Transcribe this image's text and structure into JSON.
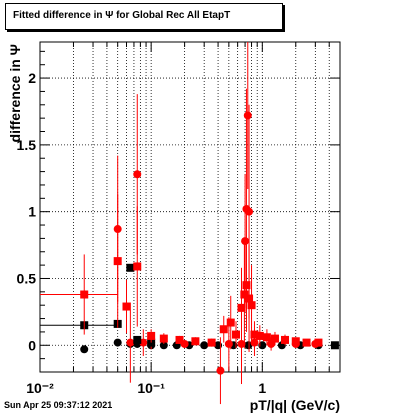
{
  "title": "Fitted difference in  Ψ  for Global Rec All EtapT",
  "footer": "Sun Apr 25 09:37:12 2021",
  "chart_data": {
    "type": "scatter",
    "title": "Fitted difference in  Ψ  for Global Rec All EtapT",
    "xlabel": "pT/|q| (GeV/c)",
    "ylabel": "difference in  Ψ",
    "xscale": "log",
    "xlim": [
      0.01,
      5.0
    ],
    "ylim": [
      -0.2,
      2.27
    ],
    "grid": true,
    "x_ticks": [
      {
        "label": "10⁻²",
        "value": 0.01
      },
      {
        "label": "10⁻¹",
        "value": 0.1
      },
      {
        "label": "1",
        "value": 1
      }
    ],
    "y_ticks": [
      {
        "label": "0",
        "value": 0
      },
      {
        "label": "0.5",
        "value": 0.5
      },
      {
        "label": "1",
        "value": 1
      },
      {
        "label": "1.5",
        "value": 1.5
      },
      {
        "label": "2",
        "value": 2
      }
    ],
    "series": [
      {
        "marker": "circle",
        "color": "#000000",
        "points": [
          {
            "x": 0.025,
            "y": -0.03,
            "elo": 0.0,
            "ehi": 0.0
          },
          {
            "x": 0.05,
            "y": 0.02,
            "elo": 0.0,
            "ehi": 0.0
          },
          {
            "x": 0.065,
            "y": 0.01,
            "elo": 0.0,
            "ehi": 0.0
          },
          {
            "x": 0.075,
            "y": 0.01,
            "elo": 0.0,
            "ehi": 0.0
          },
          {
            "x": 0.1,
            "y": 0.0,
            "elo": 0.0,
            "ehi": 0.0
          },
          {
            "x": 0.13,
            "y": 0.0,
            "elo": 0.0,
            "ehi": 0.0
          },
          {
            "x": 0.17,
            "y": 0.0,
            "elo": 0.0,
            "ehi": 0.0
          },
          {
            "x": 0.22,
            "y": 0.0,
            "elo": 0.0,
            "ehi": 0.0
          },
          {
            "x": 0.3,
            "y": 0.0,
            "elo": 0.0,
            "ehi": 0.0
          },
          {
            "x": 0.4,
            "y": 0.0,
            "elo": 0.0,
            "ehi": 0.0
          },
          {
            "x": 0.55,
            "y": 0.0,
            "elo": 0.0,
            "ehi": 0.0
          },
          {
            "x": 0.75,
            "y": 0.0,
            "elo": 0.0,
            "ehi": 0.0
          },
          {
            "x": 1.0,
            "y": 0.0,
            "elo": 0.0,
            "ehi": 0.0
          },
          {
            "x": 1.5,
            "y": 0.0,
            "elo": 0.0,
            "ehi": 0.0
          },
          {
            "x": 2.2,
            "y": 0.0,
            "elo": 0.0,
            "ehi": 0.0
          },
          {
            "x": 3.2,
            "y": 0.0,
            "elo": 0.0,
            "ehi": 0.0
          }
        ]
      },
      {
        "marker": "circle",
        "color": "#ff0000",
        "points": [
          {
            "x": 0.05,
            "y": 0.87,
            "elo": 0.55,
            "ehi": 0.55
          },
          {
            "x": 0.065,
            "y": 0.02,
            "elo": 0.3,
            "ehi": 0.3
          },
          {
            "x": 0.075,
            "y": 1.28,
            "elo": 0.6,
            "ehi": 0.6
          },
          {
            "x": 0.085,
            "y": 0.02,
            "elo": 0.1,
            "ehi": 0.1
          },
          {
            "x": 0.1,
            "y": 0.02,
            "elo": 0.05,
            "ehi": 0.05
          },
          {
            "x": 0.2,
            "y": 0.01,
            "elo": 0.03,
            "ehi": 0.03
          },
          {
            "x": 0.42,
            "y": -0.19,
            "elo": 0.25,
            "ehi": 0.25
          },
          {
            "x": 0.5,
            "y": 0.01,
            "elo": 0.2,
            "ehi": 0.2
          },
          {
            "x": 0.65,
            "y": 0.01,
            "elo": 0.3,
            "ehi": 0.3
          },
          {
            "x": 0.7,
            "y": 0.78,
            "elo": 0.5,
            "ehi": 0.5
          },
          {
            "x": 0.72,
            "y": 1.02,
            "elo": 0.9,
            "ehi": 0.9
          },
          {
            "x": 0.74,
            "y": 1.72,
            "elo": 0.55,
            "ehi": 0.55
          },
          {
            "x": 0.76,
            "y": 1.0,
            "elo": 0.8,
            "ehi": 0.8
          },
          {
            "x": 0.85,
            "y": 0.02,
            "elo": 0.1,
            "ehi": 0.1
          },
          {
            "x": 1.2,
            "y": 0.01,
            "elo": 0.05,
            "ehi": 0.05
          },
          {
            "x": 2.0,
            "y": 0.01,
            "elo": 0.03,
            "ehi": 0.03
          },
          {
            "x": 3.0,
            "y": 0.01,
            "elo": 0.02,
            "ehi": 0.02
          }
        ]
      },
      {
        "marker": "square",
        "color": "#000000",
        "points": [
          {
            "x": 0.025,
            "y": 0.15,
            "elo": 0.0,
            "ehi": 0.0,
            "xlo": 0.01,
            "xhi": 0.05
          },
          {
            "x": 0.05,
            "y": 0.16,
            "elo": 0.0,
            "ehi": 0.0
          },
          {
            "x": 0.065,
            "y": 0.58,
            "elo": 0.0,
            "ehi": 0.0
          },
          {
            "x": 0.075,
            "y": 0.04,
            "elo": 0.0,
            "ehi": 0.0
          },
          {
            "x": 0.1,
            "y": 0.02,
            "elo": 0.0,
            "ehi": 0.0
          },
          {
            "x": 4.5,
            "y": 0.0,
            "elo": 0.0,
            "ehi": 0.0
          }
        ]
      },
      {
        "marker": "square",
        "color": "#ff0000",
        "points": [
          {
            "x": 0.025,
            "y": 0.38,
            "elo": 0.3,
            "ehi": 0.3,
            "xlo": 0.01,
            "xhi": 0.05
          },
          {
            "x": 0.05,
            "y": 0.63,
            "elo": 0.5,
            "ehi": 0.5
          },
          {
            "x": 0.06,
            "y": 0.29,
            "elo": 0.2,
            "ehi": 0.2
          },
          {
            "x": 0.075,
            "y": 0.59,
            "elo": 0.45,
            "ehi": 0.45
          },
          {
            "x": 0.1,
            "y": 0.07,
            "elo": 0.05,
            "ehi": 0.05
          },
          {
            "x": 0.13,
            "y": 0.05,
            "elo": 0.04,
            "ehi": 0.04
          },
          {
            "x": 0.18,
            "y": 0.04,
            "elo": 0.03,
            "ehi": 0.03
          },
          {
            "x": 0.25,
            "y": 0.03,
            "elo": 0.03,
            "ehi": 0.03
          },
          {
            "x": 0.35,
            "y": 0.02,
            "elo": 0.03,
            "ehi": 0.03
          },
          {
            "x": 0.45,
            "y": 0.12,
            "elo": 0.1,
            "ehi": 0.1
          },
          {
            "x": 0.52,
            "y": 0.17,
            "elo": 0.2,
            "ehi": 0.2
          },
          {
            "x": 0.58,
            "y": 0.08,
            "elo": 0.1,
            "ehi": 0.1
          },
          {
            "x": 0.65,
            "y": 0.28,
            "elo": 0.3,
            "ehi": 0.3
          },
          {
            "x": 0.69,
            "y": 0.38,
            "elo": 0.4,
            "ehi": 0.4
          },
          {
            "x": 0.72,
            "y": 0.45,
            "elo": 0.35,
            "ehi": 0.35
          },
          {
            "x": 0.76,
            "y": 0.35,
            "elo": 0.4,
            "ehi": 0.4
          },
          {
            "x": 0.8,
            "y": 0.3,
            "elo": 0.3,
            "ehi": 0.3
          },
          {
            "x": 0.85,
            "y": 0.08,
            "elo": 0.1,
            "ehi": 0.1
          },
          {
            "x": 0.95,
            "y": 0.07,
            "elo": 0.08,
            "ehi": 0.08
          },
          {
            "x": 1.1,
            "y": 0.06,
            "elo": 0.06,
            "ehi": 0.06
          },
          {
            "x": 1.3,
            "y": 0.05,
            "elo": 0.05,
            "ehi": 0.05
          },
          {
            "x": 1.6,
            "y": 0.04,
            "elo": 0.04,
            "ehi": 0.04
          },
          {
            "x": 2.0,
            "y": 0.03,
            "elo": 0.03,
            "ehi": 0.03
          },
          {
            "x": 2.5,
            "y": 0.02,
            "elo": 0.02,
            "ehi": 0.02
          },
          {
            "x": 3.2,
            "y": 0.02,
            "elo": 0.02,
            "ehi": 0.02
          }
        ]
      }
    ]
  }
}
